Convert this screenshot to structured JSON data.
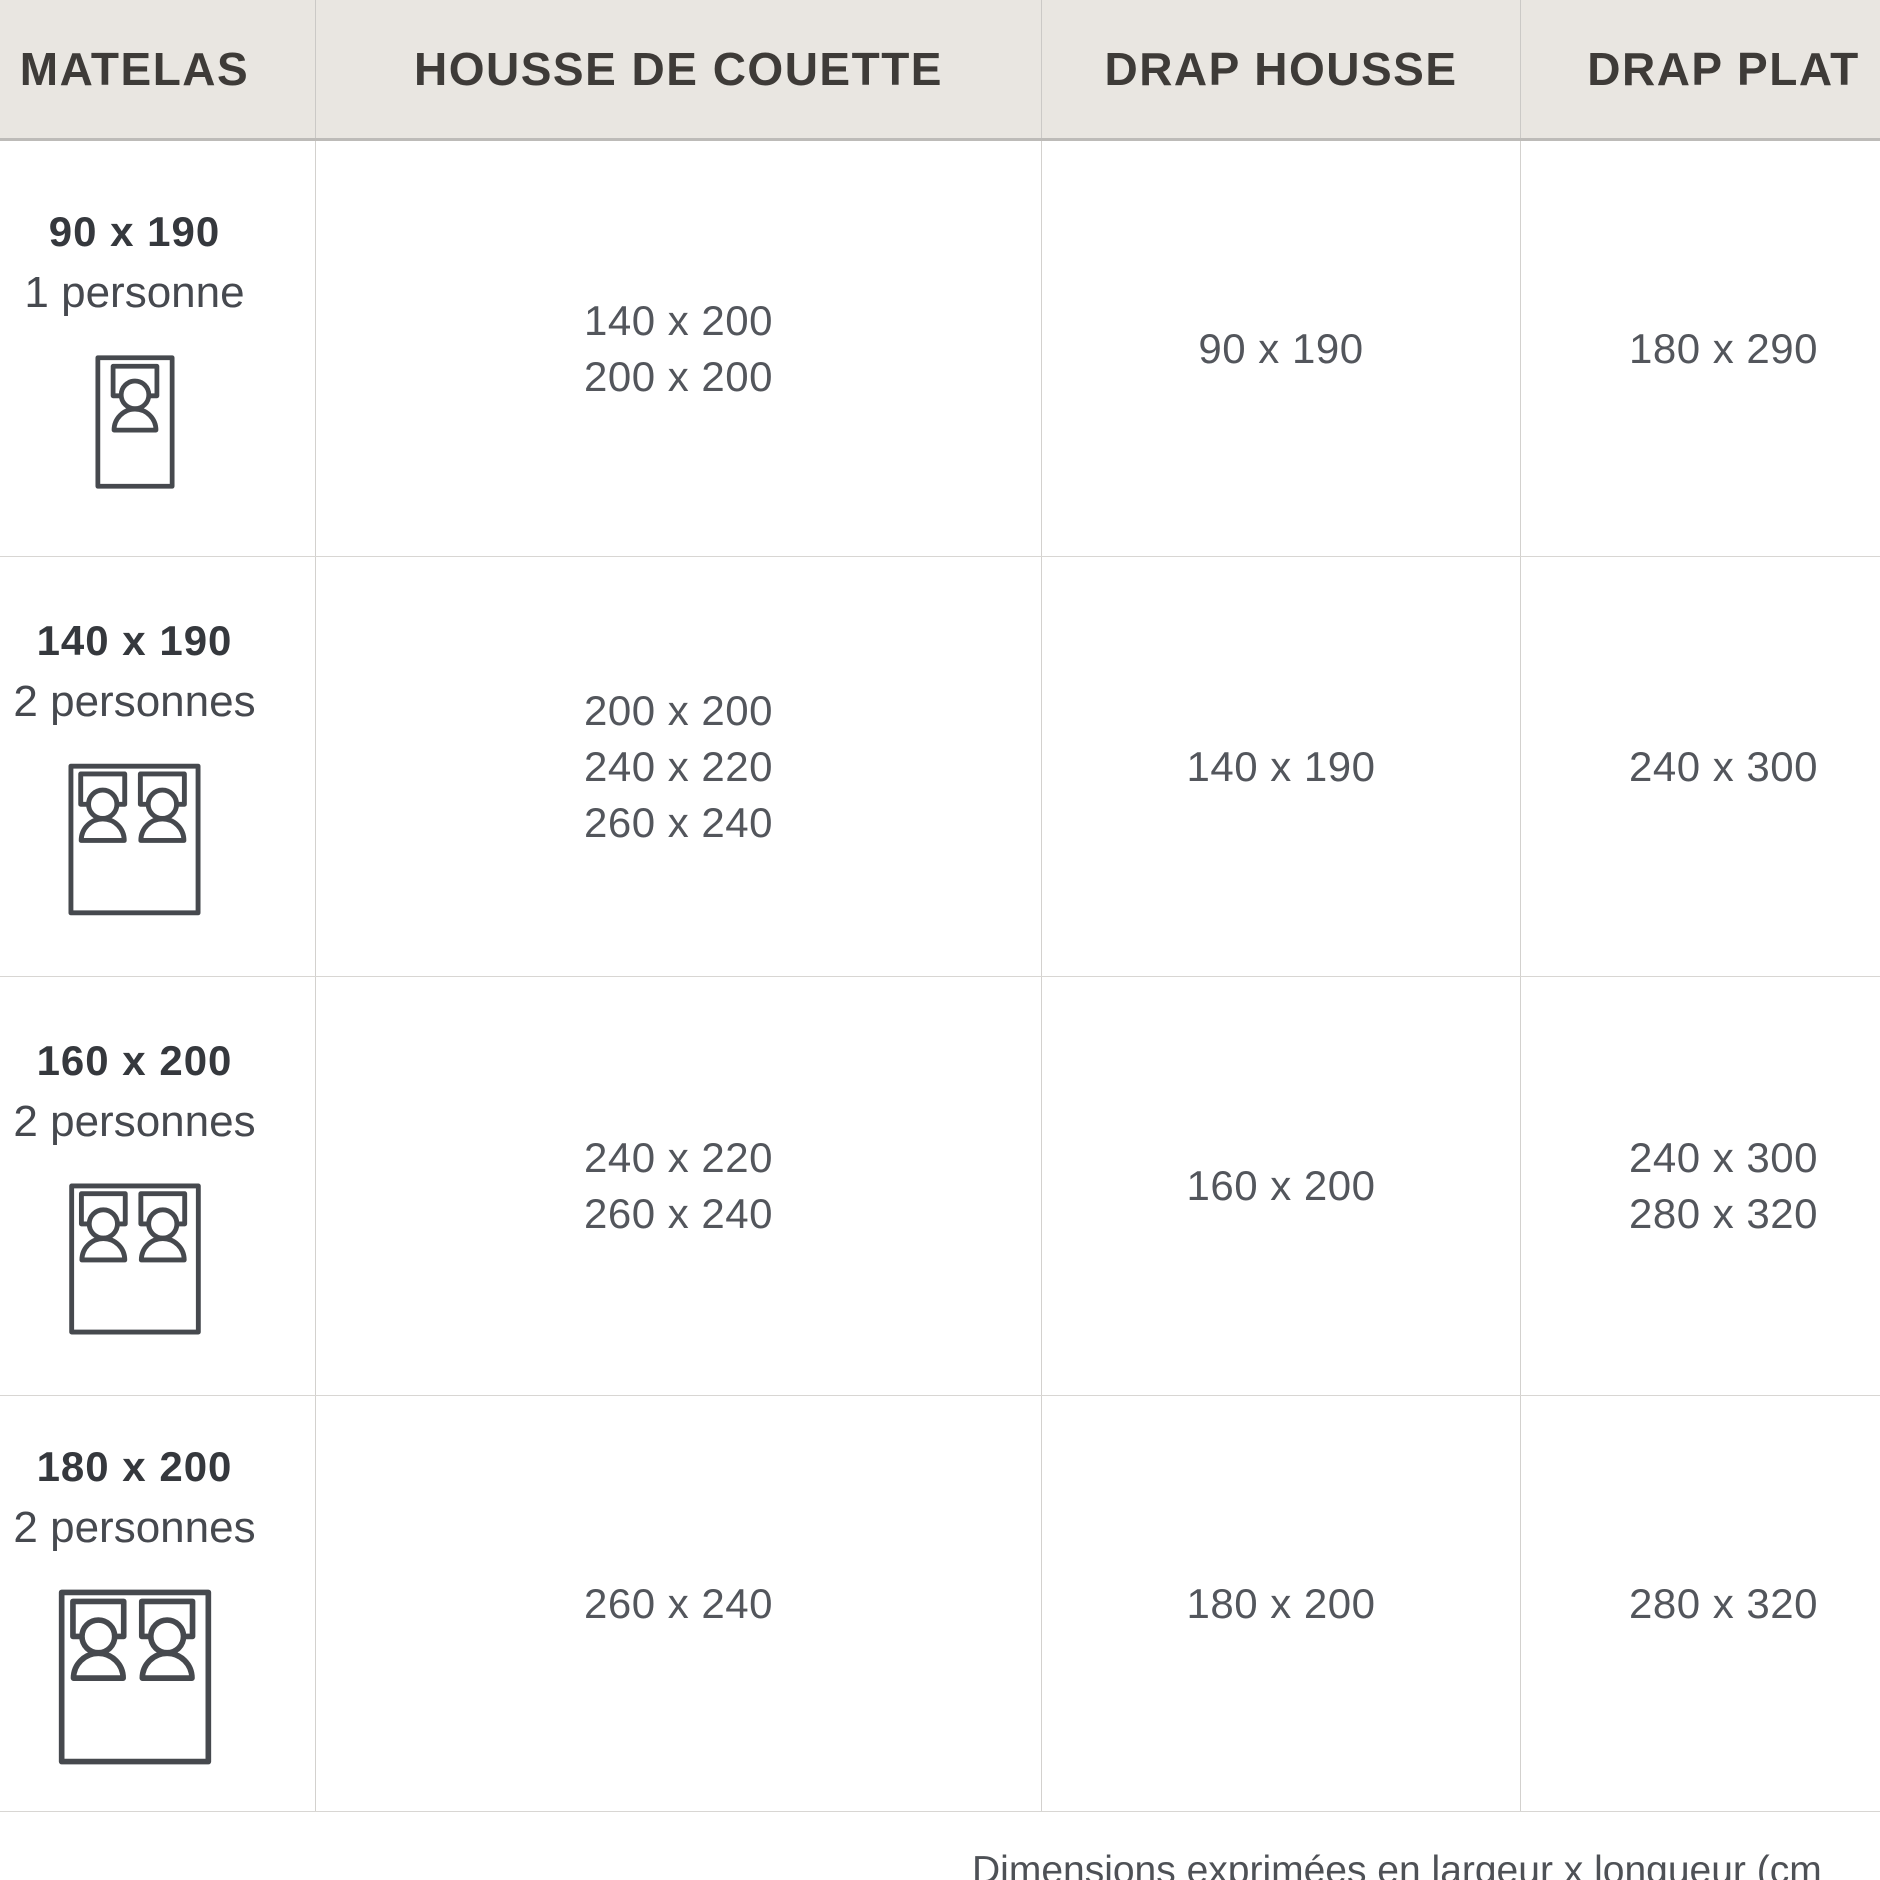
{
  "table": {
    "headers": [
      {
        "label": "MATELAS"
      },
      {
        "label": "HOUSSE DE COUETTE"
      },
      {
        "label": "DRAP HOUSSE"
      },
      {
        "label": "DRAP PLAT"
      }
    ],
    "rows": [
      {
        "mattress_size": "90 x 190",
        "capacity": "1 personne",
        "bed_icon": "single-bed-icon",
        "duvet_cover": [
          "140 x 200",
          "200 x 200"
        ],
        "fitted_sheet": [
          "90 x 190"
        ],
        "flat_sheet": [
          "180 x 290"
        ]
      },
      {
        "mattress_size": "140 x 190",
        "capacity": "2 personnes",
        "bed_icon": "double-bed-icon",
        "duvet_cover": [
          "200 x 200",
          "240 x 220",
          "260 x 240"
        ],
        "fitted_sheet": [
          "140 x 190"
        ],
        "flat_sheet": [
          "240 x 300"
        ]
      },
      {
        "mattress_size": "160 x 200",
        "capacity": "2 personnes",
        "bed_icon": "double-bed-icon",
        "duvet_cover": [
          "240 x 220",
          "260 x 240"
        ],
        "fitted_sheet": [
          "160 x 200"
        ],
        "flat_sheet": [
          "240 x 300",
          "280 x 320"
        ]
      },
      {
        "mattress_size": "180 x 200",
        "capacity": "2 personnes",
        "bed_icon": "double-bed-icon",
        "duvet_cover": [
          "260 x 240"
        ],
        "fitted_sheet": [
          "180 x 200"
        ],
        "flat_sheet": [
          "280 x 320"
        ]
      }
    ],
    "footnote": "Dimensions exprimées en largeur x longueur (cm"
  },
  "colors": {
    "header_bg": "#e9e6e1",
    "header_text": "#3e3b38",
    "cell_text": "#53565c",
    "bold_text": "#35383d",
    "border": "#d3d1ce",
    "header_border": "#bdbbb8",
    "icon_stroke": "#46494e"
  }
}
